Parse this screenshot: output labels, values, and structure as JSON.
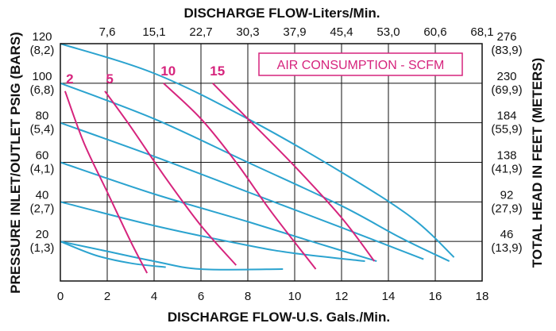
{
  "chart_data": {
    "type": "line",
    "title_top": "DISCHARGE FLOW-Liters/Min.",
    "xlabel": "DISCHARGE FLOW-U.S. Gals./Min.",
    "ylabel": "PRESSURE INLET/OUTLET PSIG (BARS)",
    "y2label": "TOTAL HEAD IN FEET (METERS)",
    "legend_label": "AIR CONSUMPTION - SCFM",
    "xlim": [
      0,
      18
    ],
    "ylim": [
      0,
      120
    ],
    "grid": true,
    "x_ticks": [
      "0",
      "2",
      "4",
      "6",
      "8",
      "10",
      "12",
      "14",
      "16",
      "18"
    ],
    "x_top_ticks": [
      "7,6",
      "15,1",
      "22,7",
      "30,3",
      "37,9",
      "45,4",
      "53,0",
      "60,6",
      "68,1"
    ],
    "y_ticks": [
      {
        "psi": "120",
        "bar": "(8,2)"
      },
      {
        "psi": "100",
        "bar": "(6,8)"
      },
      {
        "psi": "80",
        "bar": "(5,4)"
      },
      {
        "psi": "60",
        "bar": "(4,1)"
      },
      {
        "psi": "40",
        "bar": "(2,7)"
      },
      {
        "psi": "20",
        "bar": "(1,3)"
      }
    ],
    "y2_ticks": [
      {
        "ft": "276",
        "m": "(83,9)"
      },
      {
        "ft": "230",
        "m": "(69,9)"
      },
      {
        "ft": "184",
        "m": "(55,9)"
      },
      {
        "ft": "138",
        "m": "(41,9)"
      },
      {
        "ft": "92",
        "m": "(27,9)"
      },
      {
        "ft": "46",
        "m": "(13,9)"
      }
    ],
    "flow_curves": [
      {
        "color": "#2ba3cf",
        "points": [
          [
            0,
            120
          ],
          [
            4,
            105
          ],
          [
            8,
            82
          ],
          [
            12,
            55
          ],
          [
            15,
            32
          ],
          [
            16.8,
            12
          ]
        ]
      },
      {
        "color": "#2ba3cf",
        "points": [
          [
            0,
            100
          ],
          [
            4,
            82
          ],
          [
            8,
            60
          ],
          [
            12,
            38
          ],
          [
            14.5,
            22
          ],
          [
            16.6,
            10
          ]
        ]
      },
      {
        "color": "#2ba3cf",
        "points": [
          [
            0,
            80
          ],
          [
            4,
            63
          ],
          [
            8,
            45
          ],
          [
            12,
            27
          ],
          [
            15.5,
            11
          ]
        ]
      },
      {
        "color": "#2ba3cf",
        "points": [
          [
            0,
            60
          ],
          [
            4,
            44
          ],
          [
            8,
            30
          ],
          [
            11,
            19
          ],
          [
            13.5,
            10
          ]
        ]
      },
      {
        "color": "#2ba3cf",
        "points": [
          [
            0,
            40
          ],
          [
            4,
            28
          ],
          [
            8,
            18
          ],
          [
            10,
            14
          ],
          [
            13,
            10
          ]
        ]
      },
      {
        "color": "#2ba3cf",
        "points": [
          [
            0,
            20
          ],
          [
            2,
            15
          ],
          [
            4,
            10
          ],
          [
            6,
            6
          ],
          [
            9.5,
            6
          ]
        ]
      },
      {
        "color": "#2ba3cf",
        "points": [
          [
            0,
            20
          ],
          [
            1.5,
            13
          ],
          [
            3,
            9
          ],
          [
            4.5,
            7
          ]
        ]
      }
    ],
    "air_curves": [
      {
        "label": "2",
        "color": "#d6247d",
        "points": [
          [
            0.2,
            96
          ],
          [
            1,
            70
          ],
          [
            2,
            45
          ],
          [
            3,
            20
          ],
          [
            3.7,
            4
          ]
        ]
      },
      {
        "label": "5",
        "color": "#d6247d",
        "points": [
          [
            1.9,
            96
          ],
          [
            3,
            78
          ],
          [
            4.5,
            52
          ],
          [
            6,
            28
          ],
          [
            7.5,
            8
          ]
        ]
      },
      {
        "label": "10",
        "color": "#d6247d",
        "points": [
          [
            4.4,
            100
          ],
          [
            6,
            82
          ],
          [
            7.5,
            60
          ],
          [
            9,
            35
          ],
          [
            10.9,
            6
          ]
        ]
      },
      {
        "label": "15",
        "color": "#d6247d",
        "points": [
          [
            6.5,
            100
          ],
          [
            8,
            82
          ],
          [
            10,
            58
          ],
          [
            12,
            32
          ],
          [
            13.4,
            10
          ]
        ]
      }
    ]
  }
}
